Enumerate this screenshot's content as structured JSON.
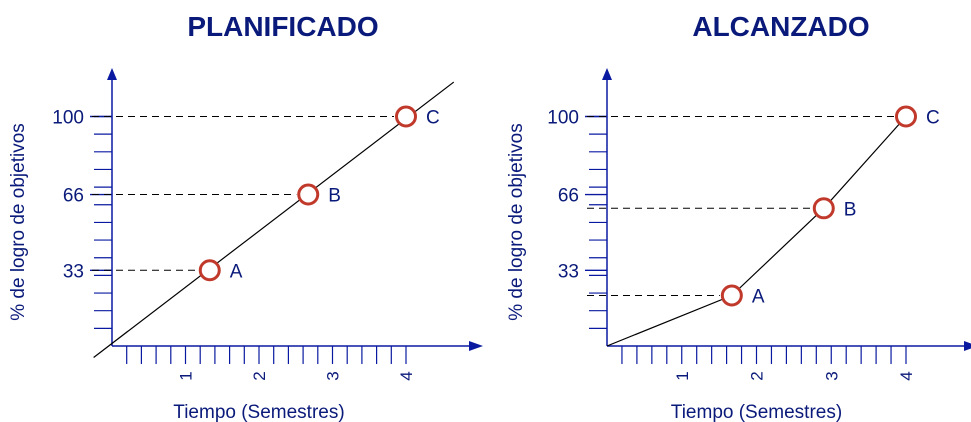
{
  "colors": {
    "text": "#0a1a7a",
    "axis": "#0a1aa0",
    "marker": "#c0392b",
    "line": "#000000"
  },
  "chart_data": [
    {
      "type": "line",
      "title": "PLANIFICADO",
      "xlabel": "Tiempo (Semestres)",
      "ylabel": "% de logro de objetivos",
      "x_ticks": [
        "1",
        "2",
        "3",
        "4"
      ],
      "y_ticks": [
        "33",
        "66",
        "100"
      ],
      "xlim": [
        0,
        4
      ],
      "ylim": [
        0,
        100
      ],
      "line_start": [
        -0.25,
        -5
      ],
      "line_end": [
        4.65,
        115
      ],
      "points": [
        {
          "label": "A",
          "x": 1.33,
          "y": 33
        },
        {
          "label": "B",
          "x": 2.67,
          "y": 66
        },
        {
          "label": "C",
          "x": 4.0,
          "y": 100
        }
      ]
    },
    {
      "type": "line",
      "title": "ALCANZADO",
      "xlabel": "Tiempo (Semestres)",
      "ylabel": "% de logro de objetivos",
      "x_ticks": [
        "1",
        "2",
        "3",
        "4"
      ],
      "y_ticks": [
        "33",
        "66",
        "100"
      ],
      "xlim": [
        0,
        4
      ],
      "ylim": [
        0,
        100
      ],
      "line_start": [
        0,
        0
      ],
      "points": [
        {
          "label": "A",
          "x": 1.67,
          "y": 22
        },
        {
          "label": "B",
          "x": 2.9,
          "y": 60
        },
        {
          "label": "C",
          "x": 4.0,
          "y": 100
        }
      ]
    }
  ]
}
